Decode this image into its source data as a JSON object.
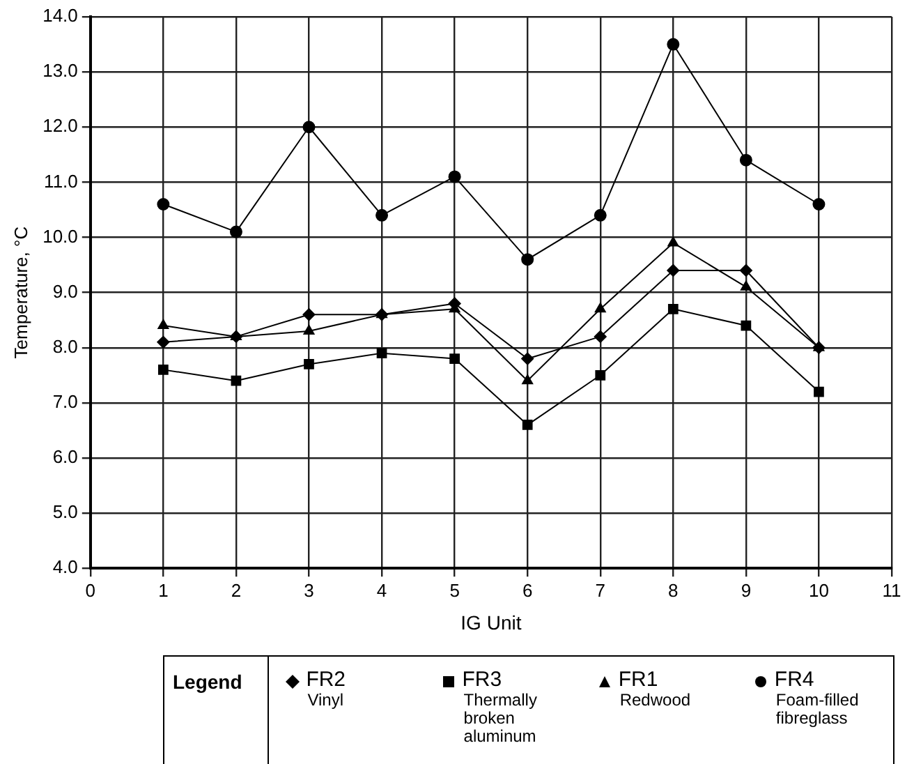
{
  "chart_data": {
    "type": "line",
    "xlabel": "IG Unit",
    "ylabel": "Temperature, °C",
    "x": [
      1,
      2,
      3,
      4,
      5,
      6,
      7,
      8,
      9,
      10
    ],
    "xlim": [
      0,
      11
    ],
    "xticks": [
      0,
      1,
      2,
      3,
      4,
      5,
      6,
      7,
      8,
      9,
      10,
      11
    ],
    "ylim": [
      4,
      14
    ],
    "yticks": [
      {
        "value": 4,
        "label": "4.0"
      },
      {
        "value": 5,
        "label": "5.0"
      },
      {
        "value": 6,
        "label": "6.0"
      },
      {
        "value": 7,
        "label": "7.0"
      },
      {
        "value": 8,
        "label": "8.0"
      },
      {
        "value": 9,
        "label": "9.0"
      },
      {
        "value": 10,
        "label": "10.0"
      },
      {
        "value": 11,
        "label": "11.0"
      },
      {
        "value": 12,
        "label": "12.0"
      },
      {
        "value": 13,
        "label": "13.0"
      },
      {
        "value": 14,
        "label": "14.0"
      }
    ],
    "grid": true,
    "legend": "bottom",
    "legend_title": "Legend",
    "series": [
      {
        "name": "FR2 Vinyl",
        "color": "#000000",
        "marker": "diamond",
        "values": [
          8.1,
          8.2,
          8.6,
          8.6,
          8.8,
          7.8,
          8.2,
          9.4,
          9.4,
          8.0
        ]
      },
      {
        "name": "FR3 Thermally broken aluminum",
        "color": "#000000",
        "marker": "square",
        "values": [
          7.6,
          7.4,
          7.7,
          7.9,
          7.8,
          6.6,
          7.5,
          8.7,
          8.4,
          7.2
        ]
      },
      {
        "name": "FR1 Redwood",
        "color": "#000000",
        "marker": "triangle",
        "values": [
          8.4,
          8.2,
          8.3,
          8.6,
          8.7,
          7.4,
          8.7,
          9.9,
          9.1,
          8.0
        ]
      },
      {
        "name": "FR4 Foam-filled fibreglass",
        "color": "#000000",
        "marker": "circle",
        "values": [
          10.6,
          10.1,
          12.0,
          10.4,
          11.1,
          9.6,
          10.4,
          13.5,
          11.4,
          10.6
        ]
      }
    ]
  }
}
